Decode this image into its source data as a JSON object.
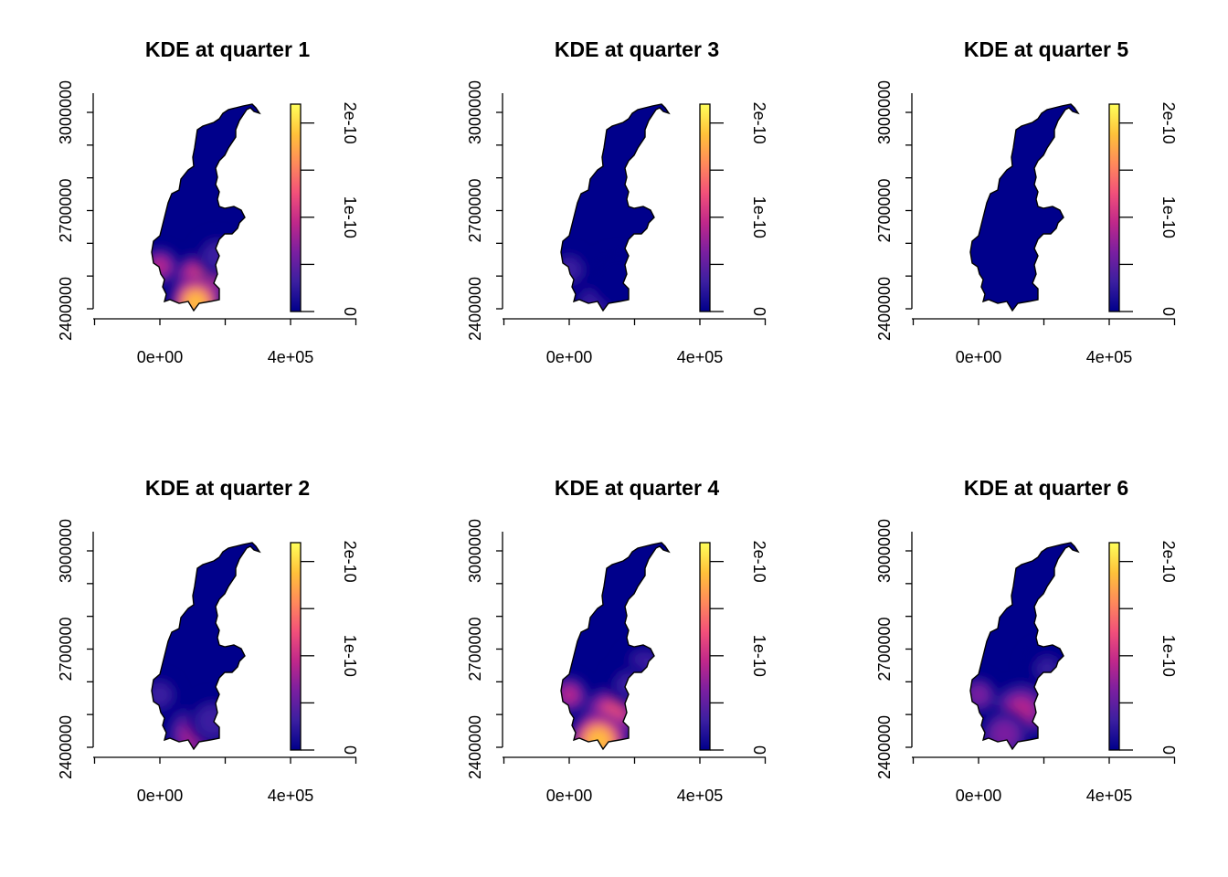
{
  "chart_data": [
    {
      "type": "heatmap",
      "title": "KDE at quarter 1",
      "x_tick_labels": [
        "0e+00",
        "4e+05"
      ],
      "y_tick_labels": [
        "2400000",
        "2700000",
        "3000000"
      ],
      "colorbar_tick_labels": [
        "0",
        "1e-10",
        "2e-10"
      ],
      "xlim": [
        -200000,
        600000
      ],
      "ylim": [
        2370000,
        3060000
      ],
      "colorbar_range": [
        0,
        2.2e-10
      ],
      "hotspots": [
        {
          "x": 0,
          "y": 2530000,
          "intensity": 1e-10,
          "spread": 30000
        },
        {
          "x": 130000,
          "y": 2490000,
          "intensity": 1.5e-10,
          "spread": 45000
        },
        {
          "x": 110000,
          "y": 2420000,
          "intensity": 1.9e-10,
          "spread": 40000
        },
        {
          "x": 175000,
          "y": 2560000,
          "intensity": 5e-11,
          "spread": 35000
        }
      ]
    },
    {
      "type": "heatmap",
      "title": "KDE at quarter 2",
      "x_tick_labels": [
        "0e+00",
        "4e+05"
      ],
      "y_tick_labels": [
        "2400000",
        "2700000",
        "3000000"
      ],
      "colorbar_tick_labels": [
        "0",
        "1e-10",
        "2e-10"
      ],
      "xlim": [
        -200000,
        600000
      ],
      "ylim": [
        2370000,
        3060000
      ],
      "colorbar_range": [
        0,
        2.2e-10
      ],
      "hotspots": [
        {
          "x": 0,
          "y": 2560000,
          "intensity": 6e-11,
          "spread": 30000
        },
        {
          "x": 110000,
          "y": 2440000,
          "intensity": 1e-10,
          "spread": 45000
        },
        {
          "x": 160000,
          "y": 2480000,
          "intensity": 5e-11,
          "spread": 40000
        }
      ]
    },
    {
      "type": "heatmap",
      "title": "KDE at quarter 3",
      "x_tick_labels": [
        "0e+00",
        "4e+05"
      ],
      "y_tick_labels": [
        "2400000",
        "2700000",
        "3000000"
      ],
      "colorbar_tick_labels": [
        "0",
        "1e-10",
        "2e-10"
      ],
      "xlim": [
        -200000,
        600000
      ],
      "ylim": [
        2370000,
        3060000
      ],
      "colorbar_range": [
        0,
        2.2e-10
      ],
      "hotspots": [
        {
          "x": 0,
          "y": 2520000,
          "intensity": 5e-11,
          "spread": 30000
        },
        {
          "x": 80000,
          "y": 2420000,
          "intensity": 4.5e-11,
          "spread": 40000
        },
        {
          "x": 150000,
          "y": 2490000,
          "intensity": 3e-11,
          "spread": 45000
        }
      ]
    },
    {
      "type": "heatmap",
      "title": "KDE at quarter 4",
      "x_tick_labels": [
        "0e+00",
        "4e+05"
      ],
      "y_tick_labels": [
        "2400000",
        "2700000",
        "3000000"
      ],
      "colorbar_tick_labels": [
        "0",
        "1e-10",
        "2e-10"
      ],
      "xlim": [
        -200000,
        600000
      ],
      "ylim": [
        2370000,
        3060000
      ],
      "colorbar_range": [
        0,
        2.2e-10
      ],
      "hotspots": [
        {
          "x": 0,
          "y": 2560000,
          "intensity": 1.1e-10,
          "spread": 30000
        },
        {
          "x": 130000,
          "y": 2500000,
          "intensity": 1.4e-10,
          "spread": 45000
        },
        {
          "x": 90000,
          "y": 2420000,
          "intensity": 2e-10,
          "spread": 45000
        },
        {
          "x": 230000,
          "y": 2640000,
          "intensity": 6e-11,
          "spread": 40000
        },
        {
          "x": 180000,
          "y": 2590000,
          "intensity": 4e-11,
          "spread": 35000
        }
      ]
    },
    {
      "type": "heatmap",
      "title": "KDE at quarter 5",
      "x_tick_labels": [
        "0e+00",
        "4e+05"
      ],
      "y_tick_labels": [
        "2400000",
        "2700000",
        "3000000"
      ],
      "colorbar_tick_labels": [
        "0",
        "1e-10",
        "2e-10"
      ],
      "xlim": [
        -200000,
        600000
      ],
      "ylim": [
        2370000,
        3060000
      ],
      "colorbar_range": [
        0,
        2.2e-10
      ],
      "hotspots": []
    },
    {
      "type": "heatmap",
      "title": "KDE at quarter 6",
      "x_tick_labels": [
        "0e+00",
        "4e+05"
      ],
      "y_tick_labels": [
        "2400000",
        "2700000",
        "3000000"
      ],
      "colorbar_tick_labels": [
        "0",
        "1e-10",
        "2e-10"
      ],
      "xlim": [
        -200000,
        600000
      ],
      "ylim": [
        2370000,
        3060000
      ],
      "colorbar_range": [
        0,
        2.2e-10
      ],
      "hotspots": [
        {
          "x": 0,
          "y": 2560000,
          "intensity": 8e-11,
          "spread": 30000
        },
        {
          "x": 130000,
          "y": 2510000,
          "intensity": 1.1e-10,
          "spread": 45000
        },
        {
          "x": 80000,
          "y": 2440000,
          "intensity": 9e-11,
          "spread": 40000
        },
        {
          "x": 210000,
          "y": 2640000,
          "intensity": 3.5e-11,
          "spread": 40000
        }
      ]
    }
  ],
  "colormap": [
    "#00008b",
    "#3b1fa0",
    "#7a1fa0",
    "#c0288a",
    "#f2507a",
    "#ff8a5a",
    "#ffc23a",
    "#ffff5a"
  ]
}
